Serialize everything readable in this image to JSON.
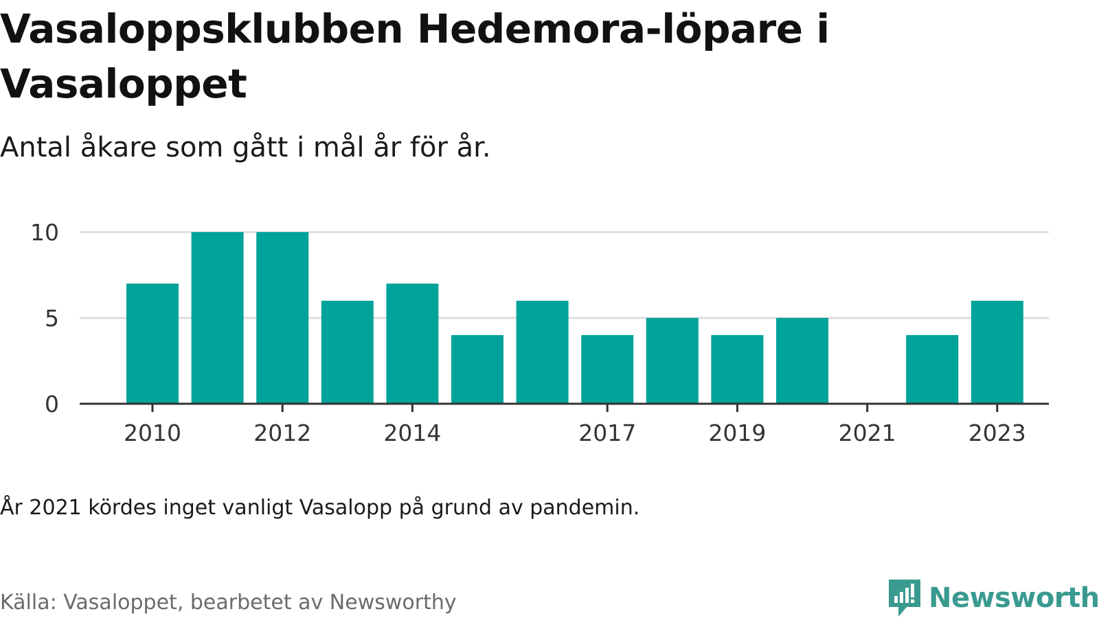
{
  "title": "Vasaloppsklubben Hedemora-löpare i Vasaloppet",
  "subtitle": "Antal åkare som gått i mål år för år.",
  "note": "År 2021 kördes inget vanligt Vasalopp på grund av pandemin.",
  "source": "Källa: Vasaloppet, bearbetet av Newsworthy",
  "brand": {
    "name": "Newsworthy",
    "icon": "newsworthy-logo-icon",
    "color": "#3a9a90"
  },
  "chart_data": {
    "type": "bar",
    "categories": [
      2010,
      2011,
      2012,
      2013,
      2014,
      2015,
      2016,
      2017,
      2018,
      2019,
      2020,
      2021,
      2022,
      2023
    ],
    "values": [
      7,
      10,
      10,
      6,
      7,
      4,
      6,
      4,
      5,
      4,
      5,
      0,
      4,
      6
    ],
    "x_tick_labels": [
      "2010",
      "2012",
      "2014",
      "2017",
      "2019",
      "2021",
      "2023"
    ],
    "y_ticks": [
      0,
      5,
      10
    ],
    "ylim": [
      0,
      10
    ],
    "grid": true,
    "bar_color": "#00a39a",
    "grid_color": "#dddddd",
    "axis_color": "#333333"
  }
}
